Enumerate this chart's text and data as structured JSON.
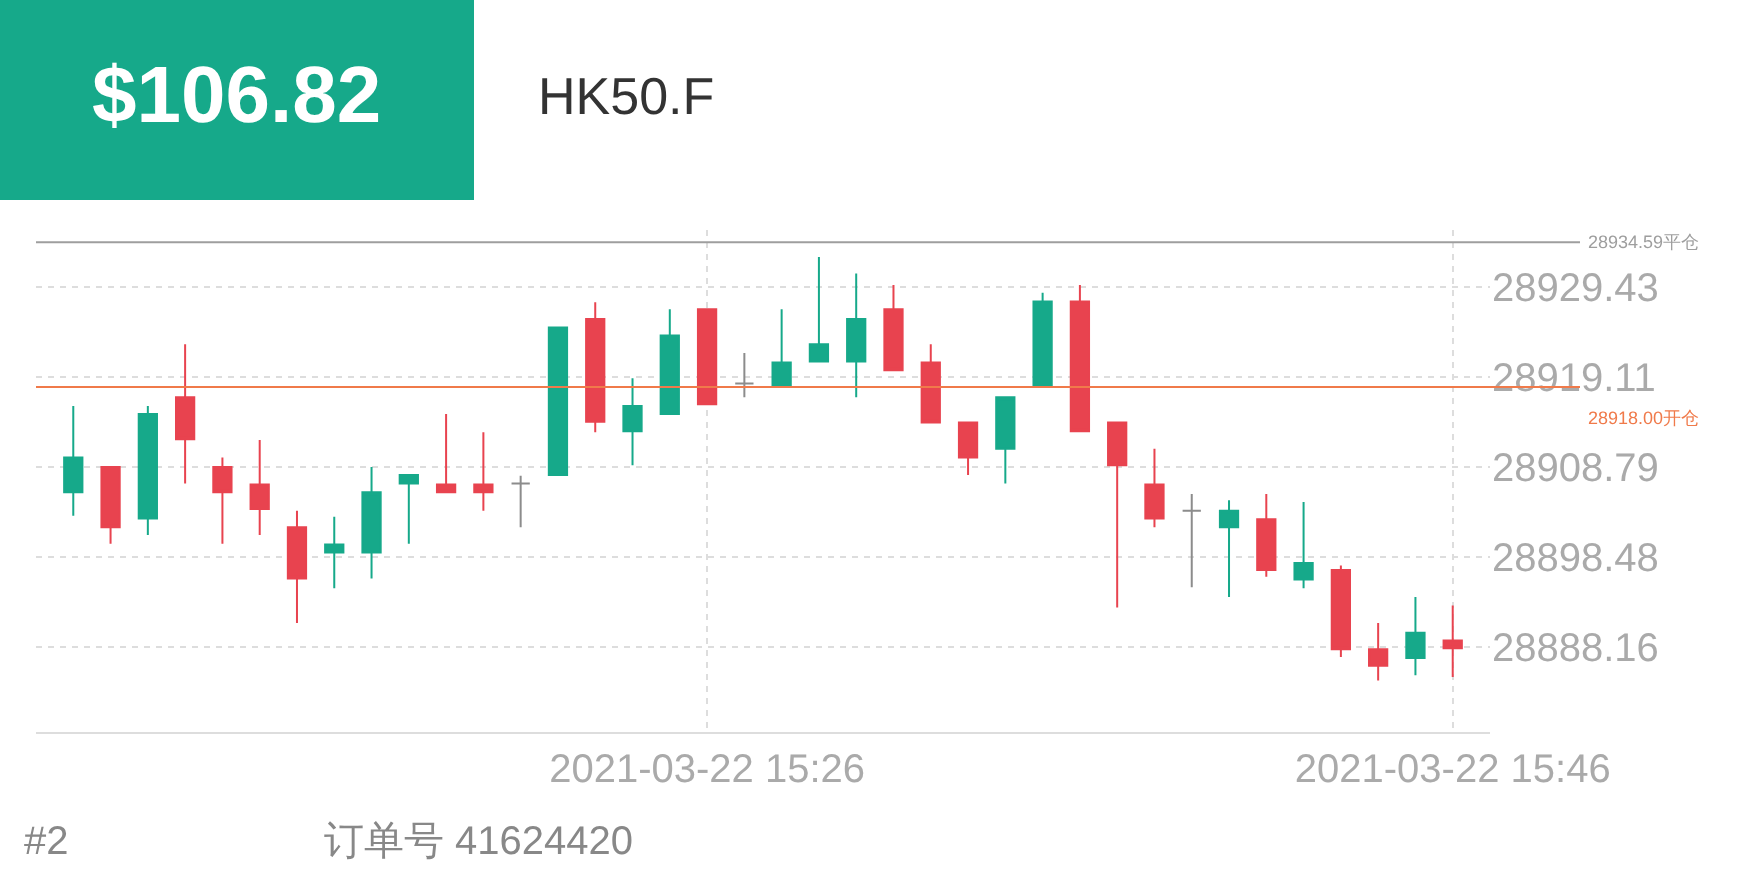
{
  "chart_data": {
    "type": "candlestick",
    "title": "HK50.F",
    "annotations": [
      "$106.82",
      "#2",
      "订单号 41624420"
    ],
    "x": [
      "2021-03-22T15:09",
      "2021-03-22T15:10",
      "2021-03-22T15:11",
      "2021-03-22T15:12",
      "2021-03-22T15:13",
      "2021-03-22T15:14",
      "2021-03-22T15:15",
      "2021-03-22T15:16",
      "2021-03-22T15:17",
      "2021-03-22T15:18",
      "2021-03-22T15:19",
      "2021-03-22T15:20",
      "2021-03-22T15:21",
      "2021-03-22T15:22",
      "2021-03-22T15:23",
      "2021-03-22T15:24",
      "2021-03-22T15:25",
      "2021-03-22T15:26",
      "2021-03-22T15:27",
      "2021-03-22T15:28",
      "2021-03-22T15:29",
      "2021-03-22T15:30",
      "2021-03-22T15:31",
      "2021-03-22T15:32",
      "2021-03-22T15:33",
      "2021-03-22T15:34",
      "2021-03-22T15:35",
      "2021-03-22T15:36",
      "2021-03-22T15:37",
      "2021-03-22T15:38",
      "2021-03-22T15:39",
      "2021-03-22T15:40",
      "2021-03-22T15:41",
      "2021-03-22T15:42",
      "2021-03-22T15:43",
      "2021-03-22T15:44",
      "2021-03-22T15:45",
      "2021-03-22T15:46"
    ],
    "ohlc": [
      [
        28905.9,
        28915.8,
        28903.2,
        28909.9
      ],
      [
        28908.8,
        28908.8,
        28900.0,
        28901.9
      ],
      [
        28902.9,
        28915.8,
        28901.0,
        28914.9
      ],
      [
        28916.8,
        28922.9,
        28906.9,
        28912.0
      ],
      [
        28908.8,
        28909.9,
        28900.0,
        28905.9
      ],
      [
        28906.8,
        28911.9,
        28901.0,
        28904.0
      ],
      [
        28901.9,
        28903.8,
        28890.9,
        28896.0
      ],
      [
        28899.0,
        28903.1,
        28894.9,
        28899.9
      ],
      [
        28899.0,
        28908.8,
        28896.0,
        28905.9
      ],
      [
        28906.9,
        28908.0,
        28900.0,
        28907.9
      ],
      [
        28906.8,
        28914.9,
        28905.9,
        28905.9
      ],
      [
        28906.8,
        28912.8,
        28903.8,
        28905.9
      ],
      [
        28906.9,
        28907.8,
        28901.9,
        28906.9
      ],
      [
        28907.9,
        28924.8,
        28907.9,
        28924.8
      ],
      [
        28925.8,
        28927.7,
        28912.8,
        28914.0
      ],
      [
        28912.9,
        28919.0,
        28909.0,
        28915.8
      ],
      [
        28914.9,
        28926.9,
        28914.9,
        28923.9
      ],
      [
        28926.9,
        28926.9,
        28916.0,
        28916.0
      ],
      [
        28918.4,
        28921.9,
        28916.8,
        28918.4
      ],
      [
        28918.0,
        28926.9,
        28918.0,
        28920.8
      ],
      [
        28920.9,
        28932.9,
        28920.9,
        28922.9
      ],
      [
        28920.9,
        28931.0,
        28916.8,
        28925.8
      ],
      [
        28926.9,
        28929.7,
        28919.9,
        28919.9
      ],
      [
        28920.8,
        28922.9,
        28913.9,
        28913.9
      ],
      [
        28913.9,
        28913.9,
        28907.9,
        28909.9
      ],
      [
        28910.9,
        28916.8,
        28906.9,
        28916.8
      ],
      [
        28918.0,
        28928.8,
        28918.0,
        28927.8
      ],
      [
        28927.8,
        28929.7,
        28912.9,
        28912.9
      ],
      [
        28913.9,
        28913.9,
        28892.7,
        28909.0
      ],
      [
        28906.8,
        28910.9,
        28901.9,
        28902.9
      ],
      [
        28903.8,
        28905.7,
        28895.0,
        28903.8
      ],
      [
        28901.9,
        28905.0,
        28893.9,
        28903.8
      ],
      [
        28902.8,
        28905.7,
        28896.2,
        28897.0
      ],
      [
        28895.9,
        28904.8,
        28894.9,
        28897.8
      ],
      [
        28897.0,
        28897.5,
        28887.0,
        28887.9
      ],
      [
        28887.9,
        28890.9,
        28884.3,
        28886.0
      ],
      [
        28886.9,
        28893.9,
        28884.9,
        28889.8
      ],
      [
        28888.9,
        28892.9,
        28884.7,
        28888.0
      ]
    ],
    "colors": [
      "#16a98a",
      "#e8434f",
      "#16a98a",
      "#e8434f",
      "#e8434f",
      "#e8434f",
      "#e8434f",
      "#16a98a",
      "#16a98a",
      "#16a98a",
      "#e8434f",
      "#e8434f",
      "#8c8c8c",
      "#16a98a",
      "#e8434f",
      "#16a98a",
      "#16a98a",
      "#e8434f",
      "#8c8c8c",
      "#16a98a",
      "#16a98a",
      "#16a98a",
      "#e8434f",
      "#e8434f",
      "#e8434f",
      "#16a98a",
      "#16a98a",
      "#e8434f",
      "#e8434f",
      "#e8434f",
      "#8c8c8c",
      "#16a98a",
      "#e8434f",
      "#16a98a",
      "#e8434f",
      "#e8434f",
      "#16a98a",
      "#e8434f"
    ],
    "xlim": [
      "2021-03-22T15:08",
      "2021-03-22T15:47"
    ],
    "xticks": [
      {
        "value": "2021-03-22T15:26",
        "label": "2021-03-22 15:26"
      },
      {
        "value": "2021-03-22T15:46",
        "label": "2021-03-22 15:46"
      }
    ],
    "ylim": [
      28878.4,
      28936.0
    ],
    "yticks": [
      28888.16,
      28898.48,
      28908.79,
      28919.11,
      28929.43
    ],
    "ref_lines": [
      {
        "axis": "y",
        "value": 28934.59,
        "label": "28934.59平仓",
        "color": "#9e9e9e"
      },
      {
        "axis": "y",
        "value": 28918.0,
        "label": "28918.00开仓",
        "color": "#f07a4a"
      }
    ],
    "grid": true
  }
}
